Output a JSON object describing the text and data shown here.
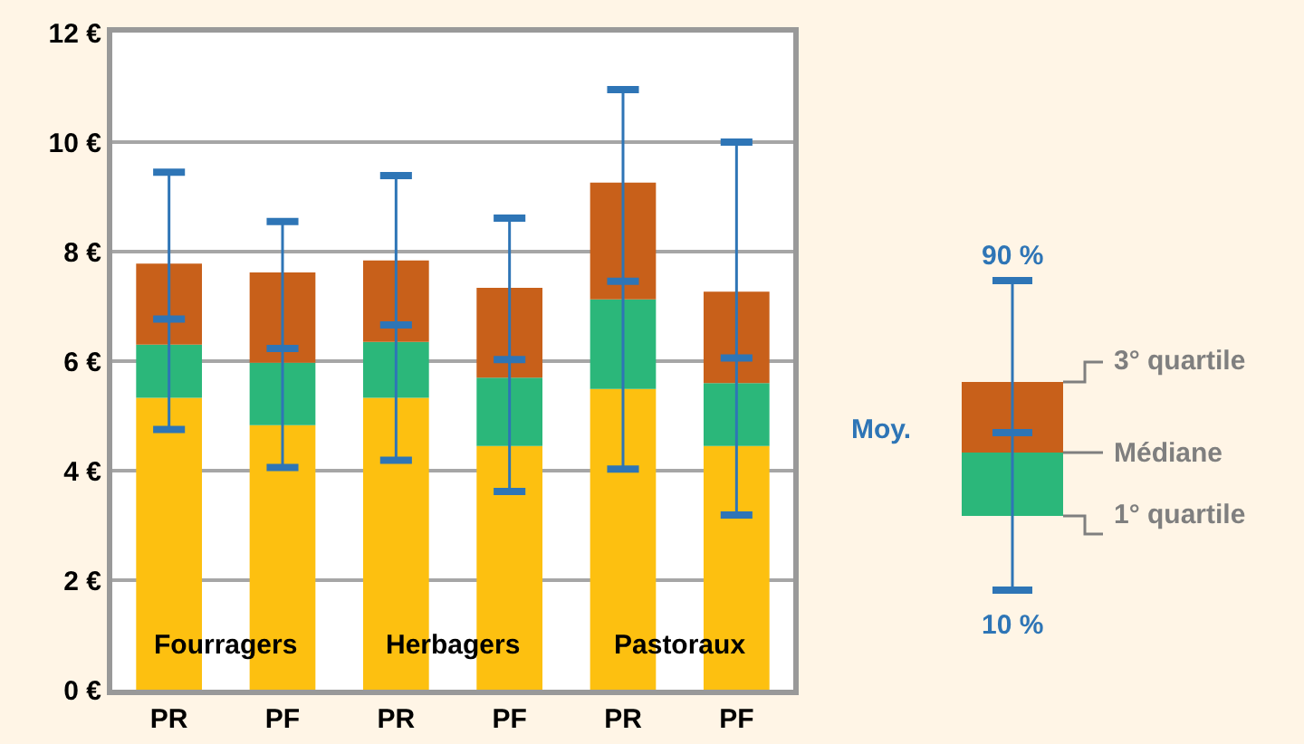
{
  "chart_data": {
    "type": "box",
    "categories": [
      "PR",
      "PF",
      "PR",
      "PF",
      "PR",
      "PF"
    ],
    "boxes": [
      {
        "low": 4.75,
        "q1": 5.33,
        "median": 6.3,
        "q3": 7.78,
        "high": 9.45,
        "mean": 6.77
      },
      {
        "low": 4.06,
        "q1": 4.83,
        "median": 5.97,
        "q3": 7.62,
        "high": 8.55,
        "mean": 6.23
      },
      {
        "low": 4.19,
        "q1": 5.33,
        "median": 6.35,
        "q3": 7.84,
        "high": 9.39,
        "mean": 6.66
      },
      {
        "low": 3.62,
        "q1": 4.45,
        "median": 5.7,
        "q3": 7.34,
        "high": 8.61,
        "mean": 6.03
      },
      {
        "low": 4.03,
        "q1": 5.49,
        "median": 7.13,
        "q3": 9.26,
        "high": 10.96,
        "mean": 7.46
      },
      {
        "low": 3.19,
        "q1": 4.45,
        "median": 5.6,
        "q3": 7.27,
        "high": 10.0,
        "mean": 6.06
      }
    ],
    "ylim": [
      0,
      12
    ],
    "yticks": [
      {
        "value": 0,
        "label": "0 €"
      },
      {
        "value": 2,
        "label": "2 €"
      },
      {
        "value": 4,
        "label": "4 €"
      },
      {
        "value": 6,
        "label": "6 €"
      },
      {
        "value": 8,
        "label": "8 €"
      },
      {
        "value": 10,
        "label": "10 €"
      },
      {
        "value": 12,
        "label": "12 €"
      }
    ],
    "grid": "y",
    "annotations": [
      "Fourragers",
      "Herbagers",
      "Pastoraux",
      "90 %",
      "3° quartile",
      "Médiane",
      "1° quartile",
      "10 %",
      "Moy."
    ]
  }
}
